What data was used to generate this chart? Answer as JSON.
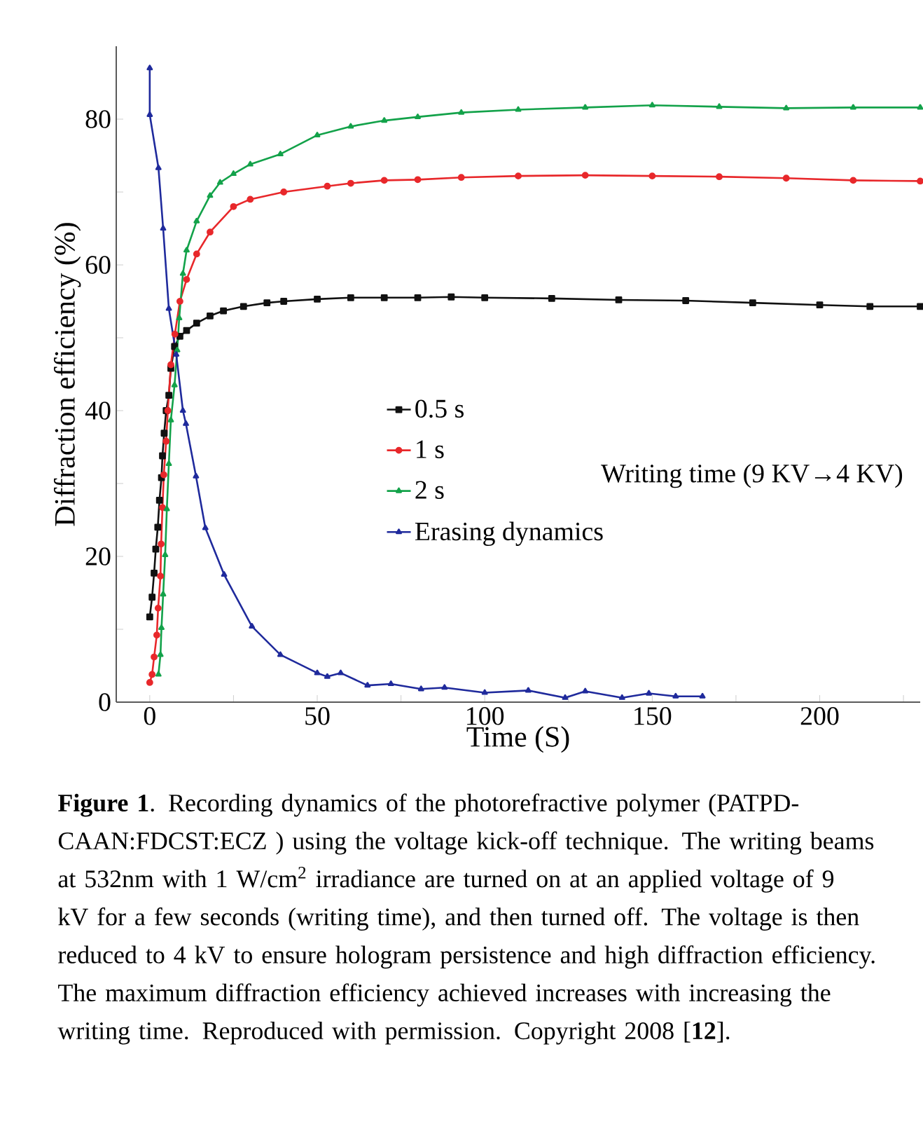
{
  "chart_data": {
    "type": "line",
    "xlabel": "Time (S)",
    "ylabel": "Diffraction efficiency (%)",
    "xlim": [
      -10,
      230
    ],
    "ylim": [
      0,
      90
    ],
    "xticks": [
      0,
      {
        "value": 25,
        "label": null
      },
      50,
      {
        "value": 75,
        "label": null
      },
      100,
      {
        "value": 125,
        "label": null
      },
      150,
      {
        "value": 175,
        "label": null
      },
      200,
      {
        "value": 225,
        "label": null
      }
    ],
    "yticks": [
      0,
      {
        "value": 10,
        "label": null
      },
      20,
      {
        "value": 30,
        "label": null
      },
      40,
      {
        "value": 50,
        "label": null
      },
      60,
      {
        "value": 70,
        "label": null
      },
      80
    ],
    "grid": false,
    "legend": "center",
    "line_style": "solid",
    "series": [
      {
        "name": "0.5 s",
        "color": "#111111",
        "marker": "square",
        "x": [
          0,
          0.7,
          1.3,
          1.8,
          2.4,
          2.9,
          3.5,
          3.8,
          4.3,
          4.9,
          5.7,
          6.3,
          7.4,
          9,
          11,
          14,
          18,
          22,
          28,
          35,
          40,
          50,
          60,
          70,
          80,
          90,
          100,
          120,
          140,
          160,
          180,
          200,
          215,
          230
        ],
        "values": [
          11.7,
          14.4,
          17.7,
          21,
          24,
          27.7,
          30.8,
          33.8,
          36.9,
          40,
          42.1,
          45.8,
          48.8,
          50.2,
          51,
          52,
          53,
          53.7,
          54.3,
          54.8,
          55,
          55.3,
          55.5,
          55.5,
          55.5,
          55.6,
          55.5,
          55.4,
          55.2,
          55.1,
          54.8,
          54.5,
          54.3,
          54.3
        ]
      },
      {
        "name": "1 s",
        "color": "#e8282b",
        "marker": "circle",
        "x": [
          0,
          0.7,
          1.3,
          2.1,
          2.5,
          3.2,
          3.4,
          3.8,
          4.2,
          4.9,
          5.4,
          6.3,
          7.5,
          9,
          11,
          14,
          18,
          25,
          30,
          40,
          53,
          60,
          70,
          80,
          93,
          110,
          130,
          150,
          170,
          190,
          210,
          230
        ],
        "values": [
          2.7,
          3.8,
          6.2,
          9.2,
          12.9,
          17.3,
          21.7,
          26.7,
          31.2,
          35.8,
          40,
          46.3,
          50.5,
          55,
          58,
          61.5,
          64.5,
          68,
          69,
          70,
          70.8,
          71.2,
          71.6,
          71.7,
          72,
          72.2,
          72.3,
          72.2,
          72.1,
          71.9,
          71.6,
          71.5
        ]
      },
      {
        "name": "2 s",
        "color": "#13a24a",
        "marker": "triangle",
        "x": [
          2.6,
          3.2,
          3.5,
          4.0,
          4.6,
          5.1,
          5.7,
          6.3,
          7.4,
          8.2,
          8.8,
          9.9,
          11,
          14,
          18,
          21,
          25,
          30,
          39,
          50,
          60,
          70,
          80,
          93,
          110,
          130,
          150,
          170,
          190,
          210,
          230
        ],
        "values": [
          3.8,
          6.5,
          10.2,
          14.8,
          20.2,
          26.5,
          32.7,
          38.7,
          43.5,
          48.3,
          52.7,
          58.8,
          62,
          66,
          69.5,
          71.3,
          72.5,
          73.8,
          75.2,
          77.8,
          79,
          79.8,
          80.3,
          80.9,
          81.3,
          81.6,
          81.9,
          81.7,
          81.5,
          81.6,
          81.6
        ]
      },
      {
        "name": "Erasing dynamics",
        "color": "#1f2a9c",
        "marker": "triangle",
        "x": [
          0,
          0,
          2.6,
          4,
          5.7,
          7.9,
          9.9,
          10.8,
          13.8,
          16.6,
          22.2,
          30.5,
          39,
          50,
          53,
          57,
          65,
          72,
          81,
          88,
          100,
          113,
          124,
          130,
          141,
          149,
          157,
          165
        ],
        "values": [
          87,
          80.6,
          73.3,
          65,
          54,
          47.7,
          40,
          38.2,
          31,
          23.9,
          17.5,
          10.4,
          6.5,
          4,
          3.5,
          4,
          2.3,
          2.5,
          1.8,
          2,
          1.3,
          1.6,
          0.6,
          1.5,
          0.6,
          1.2,
          0.8,
          0.8
        ]
      }
    ],
    "annotations": [
      "Writing time (9 KV→4 KV)",
      "**Figure 1**. Recording dynamics of the photorefractive polymer (PATPD-CAAN:FDCST:ECZ ) using the voltage kick-off technique. The writing beams at 532nm with 1 W/cm$^{2}$ irradiance are turned on at an applied voltage of 9 kV for a few seconds (writing time), and then turned off. The voltage is then reduced to 4 kV to ensure hologram persistence and high diffraction efficiency. The maximum diffraction efficiency achieved increases with increasing the writing time. Reproduced with permission. Copyright 2008 [**12**]."
    ]
  }
}
